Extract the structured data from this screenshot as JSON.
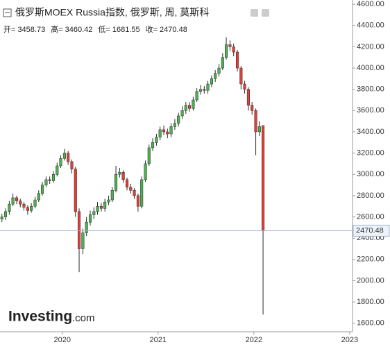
{
  "chart_data": {
    "type": "candlestick",
    "title": "俄罗斯MOEX Russia指数, 俄罗斯, 周, 莫斯科",
    "ohlc_labels": [
      "开=",
      "高=",
      "低=",
      "收="
    ],
    "watermark": {
      "brand": "Investing",
      "suffix": ".com"
    },
    "up_color": "#4caf50",
    "down_color": "#e0403a",
    "outline_color": "#2b2b2b",
    "price_line_color": "#9cb6d3",
    "grid": false,
    "xlim": [
      2019.35,
      2023.03
    ],
    "xticks": [
      2020,
      2021,
      2022,
      2023
    ],
    "ylim": [
      1520,
      4640
    ],
    "yticks": [
      {
        "value": 1600,
        "label": "1600.00"
      },
      {
        "value": 1800,
        "label": "1800.00"
      },
      {
        "value": 2000,
        "label": "2000.00"
      },
      {
        "value": 2200,
        "label": "2200.00"
      },
      {
        "value": 2400,
        "label": "2400.00"
      },
      {
        "value": 2600,
        "label": "2600.00"
      },
      {
        "value": 2800,
        "label": "2800.00"
      },
      {
        "value": 3000,
        "label": "3000.00"
      },
      {
        "value": 3200,
        "label": "3200.00"
      },
      {
        "value": 3400,
        "label": "3400.00"
      },
      {
        "value": 3600,
        "label": "3600.00"
      },
      {
        "value": 3800,
        "label": "3800.00"
      },
      {
        "value": 4000,
        "label": "4000.00"
      },
      {
        "value": 4200,
        "label": "4200.00"
      },
      {
        "value": 4400,
        "label": "4400.00"
      },
      {
        "value": 4600,
        "label": "4600.00"
      }
    ],
    "x": [
      2019.37,
      2019.408,
      2019.447,
      2019.485,
      2019.524,
      2019.562,
      2019.6,
      2019.639,
      2019.677,
      2019.716,
      2019.754,
      2019.792,
      2019.831,
      2019.869,
      2019.908,
      2019.946,
      2019.984,
      2020.023,
      2020.061,
      2020.1,
      2020.138,
      2020.176,
      2020.215,
      2020.253,
      2020.292,
      2020.33,
      2020.368,
      2020.407,
      2020.445,
      2020.484,
      2020.522,
      2020.56,
      2020.599,
      2020.637,
      2020.676,
      2020.714,
      2020.752,
      2020.791,
      2020.829,
      2020.868,
      2020.906,
      2020.944,
      2020.983,
      2021.021,
      2021.06,
      2021.098,
      2021.136,
      2021.175,
      2021.213,
      2021.252,
      2021.29,
      2021.328,
      2021.367,
      2021.405,
      2021.444,
      2021.482,
      2021.52,
      2021.559,
      2021.597,
      2021.636,
      2021.674,
      2021.712,
      2021.751,
      2021.789,
      2021.828,
      2021.866,
      2021.904,
      2021.943,
      2021.981,
      2022.02,
      2022.058,
      2022.096
    ],
    "open": [
      2580,
      2600,
      2650,
      2720,
      2780,
      2750,
      2720,
      2690,
      2660,
      2700,
      2760,
      2820,
      2900,
      2950,
      2940,
      3000,
      3080,
      3150,
      3200,
      3120,
      3050,
      2650,
      2300,
      2450,
      2550,
      2620,
      2650,
      2700,
      2680,
      2740,
      2760,
      2850,
      3000,
      3020,
      2950,
      2880,
      2850,
      2800,
      2700,
      2950,
      3100,
      3250,
      3300,
      3350,
      3420,
      3400,
      3380,
      3450,
      3480,
      3550,
      3600,
      3650,
      3620,
      3700,
      3780,
      3800,
      3790,
      3850,
      3900,
      3950,
      4000,
      4100,
      4220,
      4200,
      4150,
      4000,
      3850,
      3800,
      3650,
      3600,
      3400,
      3458.73
    ],
    "high": [
      2630,
      2680,
      2750,
      2820,
      2800,
      2770,
      2740,
      2710,
      2730,
      2790,
      2850,
      2930,
      2980,
      2980,
      3030,
      3110,
      3180,
      3240,
      3220,
      3140,
      3070,
      2680,
      2490,
      2600,
      2660,
      2690,
      2740,
      2730,
      2770,
      2800,
      2880,
      3080,
      3060,
      3040,
      2970,
      2910,
      2870,
      2820,
      2980,
      3130,
      3280,
      3340,
      3380,
      3450,
      3460,
      3430,
      3480,
      3520,
      3580,
      3640,
      3680,
      3680,
      3730,
      3810,
      3840,
      3830,
      3880,
      3930,
      3980,
      4040,
      4140,
      4290,
      4260,
      4230,
      4170,
      4020,
      3880,
      3820,
      3680,
      3620,
      3500,
      3460.42
    ],
    "low": [
      2550,
      2570,
      2620,
      2700,
      2720,
      2690,
      2660,
      2620,
      2640,
      2680,
      2740,
      2800,
      2880,
      2910,
      2920,
      2980,
      3060,
      3130,
      3090,
      3010,
      2600,
      2080,
      2250,
      2420,
      2520,
      2580,
      2620,
      2650,
      2650,
      2710,
      2740,
      2830,
      2970,
      2920,
      2850,
      2820,
      2770,
      2650,
      2680,
      2930,
      3080,
      3220,
      3270,
      3320,
      3370,
      3340,
      3350,
      3420,
      3450,
      3520,
      3570,
      3590,
      3600,
      3680,
      3750,
      3760,
      3760,
      3820,
      3870,
      3920,
      3980,
      4080,
      4160,
      4110,
      3970,
      3800,
      3760,
      3600,
      3560,
      3180,
      3360,
      1681.55
    ],
    "close": [
      2600,
      2650,
      2720,
      2780,
      2750,
      2720,
      2690,
      2660,
      2700,
      2760,
      2820,
      2900,
      2950,
      2940,
      3000,
      3080,
      3150,
      3200,
      3120,
      3050,
      2650,
      2300,
      2450,
      2550,
      2620,
      2650,
      2700,
      2680,
      2740,
      2760,
      2850,
      3000,
      3020,
      2950,
      2880,
      2850,
      2800,
      2700,
      2950,
      3100,
      3250,
      3300,
      3350,
      3420,
      3400,
      3380,
      3450,
      3480,
      3550,
      3600,
      3650,
      3620,
      3700,
      3780,
      3800,
      3790,
      3850,
      3900,
      3950,
      4000,
      4100,
      4220,
      4200,
      4150,
      4000,
      3850,
      3800,
      3650,
      3600,
      3400,
      3450,
      2470.48
    ]
  }
}
